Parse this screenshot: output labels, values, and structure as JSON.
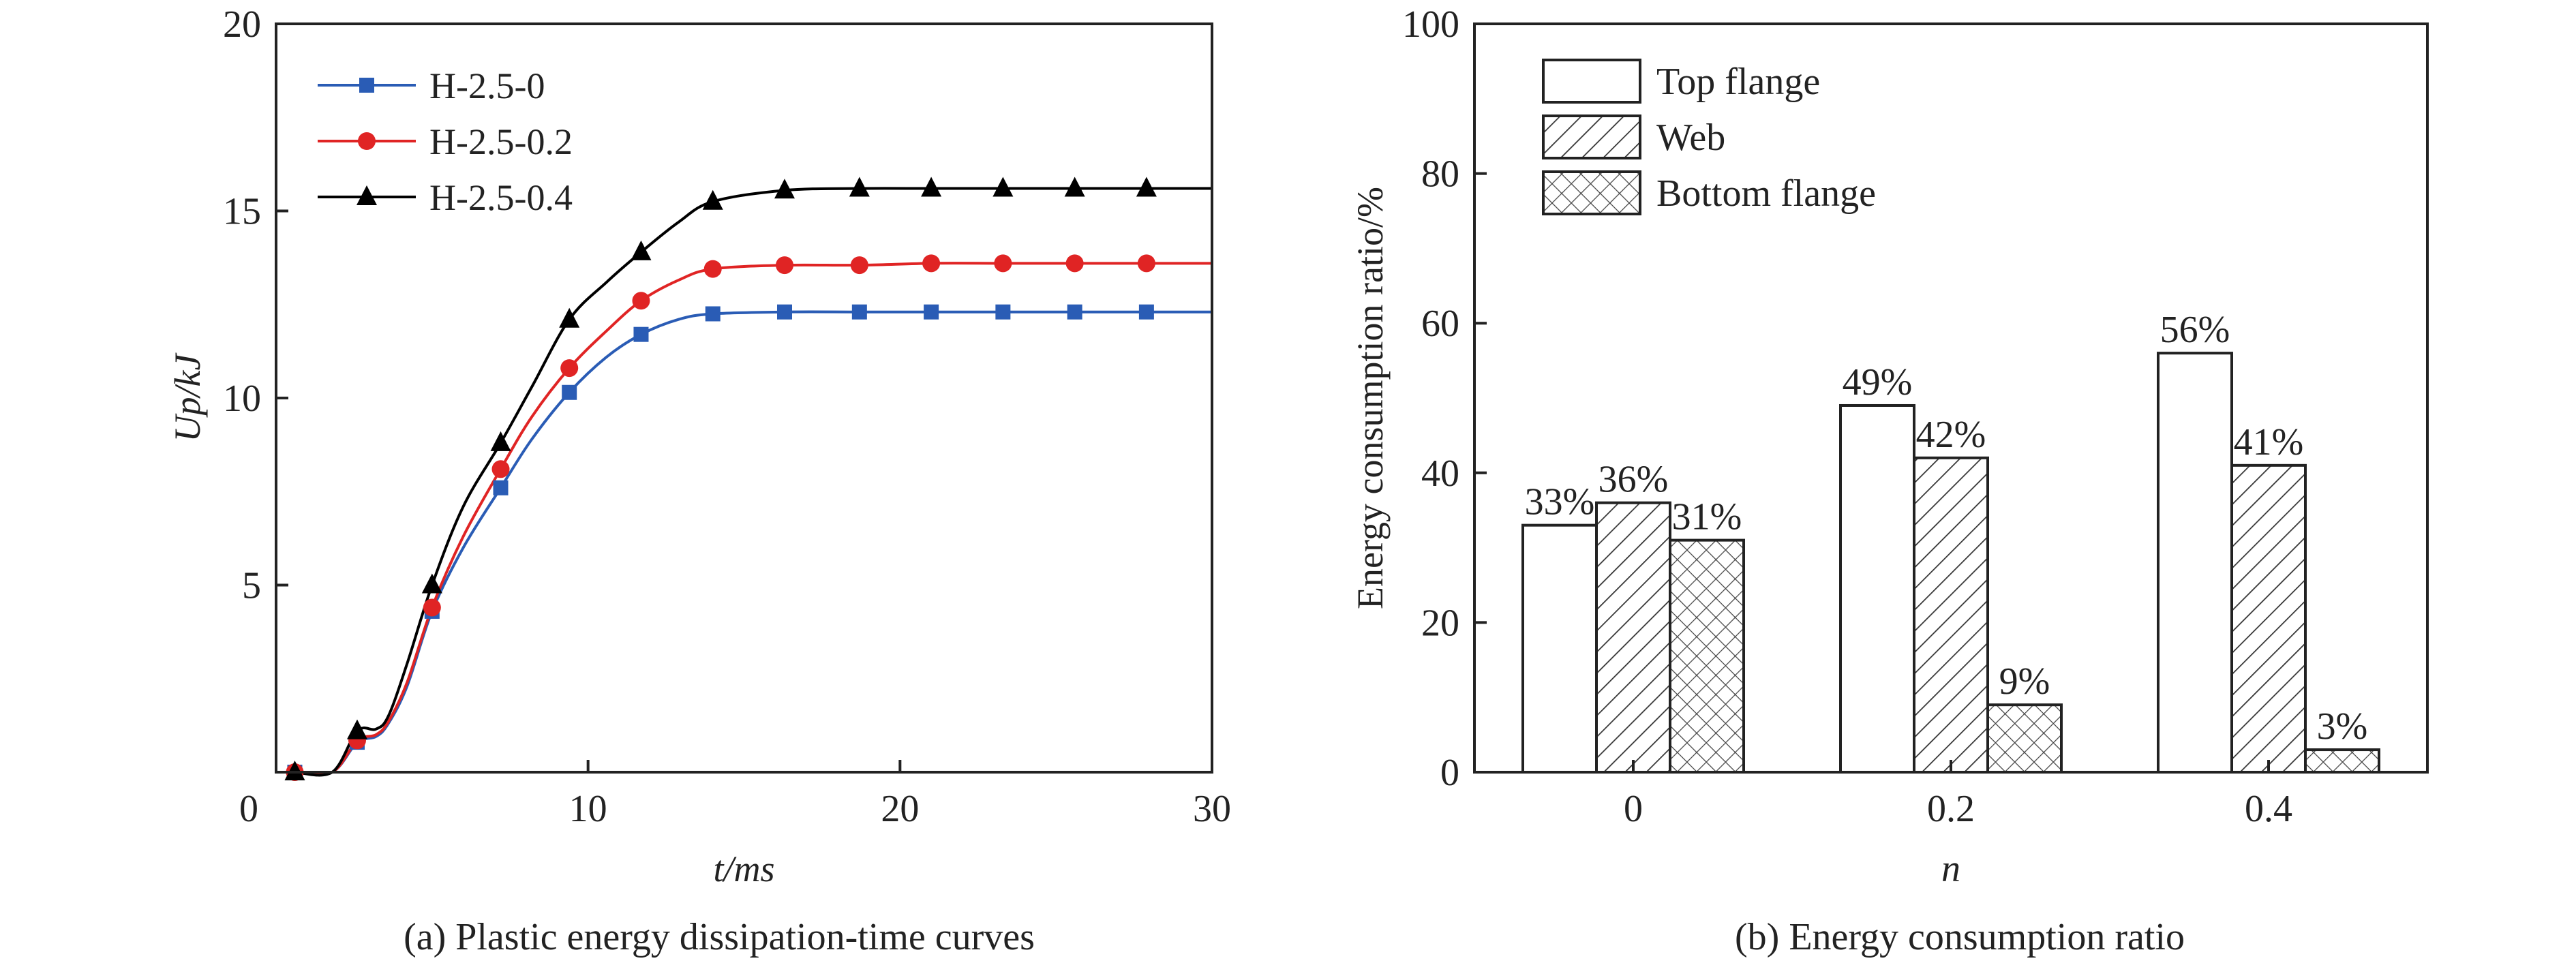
{
  "chart_data": [
    {
      "type": "line",
      "caption": "(a) Plastic energy dissipation-time curves",
      "xlabel": "t/ms",
      "ylabel": "Up/kJ",
      "xlim": [
        0,
        30
      ],
      "ylim": [
        0,
        20
      ],
      "xticks": [
        "0",
        "10",
        "20",
        "30"
      ],
      "yticks": [
        "5",
        "10",
        "15",
        "20"
      ],
      "grid": false,
      "legend": "top-left",
      "series": [
        {
          "name": "H-2.5-0",
          "color": "#2a5cb5",
          "marker": "square",
          "x": [
            0.6,
            1.8,
            2.6,
            3.2,
            3.6,
            4.2,
            5.0,
            6.0,
            7.2,
            8.2,
            9.4,
            10.6,
            11.7,
            12.9,
            14.0,
            16.3,
            18.7,
            21.0,
            23.3,
            25.6,
            27.9,
            30.0
          ],
          "y": [
            0.0,
            0.0,
            0.8,
            0.95,
            1.3,
            2.3,
            4.3,
            6.0,
            7.6,
            8.9,
            10.15,
            11.1,
            11.7,
            12.1,
            12.25,
            12.3,
            12.3,
            12.3,
            12.3,
            12.3,
            12.3,
            12.3
          ]
        },
        {
          "name": "H-2.5-0.2",
          "color": "#e02424",
          "marker": "circle",
          "x": [
            0.6,
            1.8,
            2.6,
            3.2,
            3.6,
            4.2,
            5.0,
            6.0,
            7.2,
            8.2,
            9.4,
            10.6,
            11.7,
            12.9,
            14.0,
            16.3,
            18.7,
            21.0,
            23.3,
            25.6,
            27.9,
            30.0
          ],
          "y": [
            0.0,
            0.0,
            0.85,
            1.0,
            1.35,
            2.4,
            4.4,
            6.3,
            8.1,
            9.5,
            10.8,
            11.8,
            12.6,
            13.15,
            13.45,
            13.55,
            13.55,
            13.6,
            13.6,
            13.6,
            13.6,
            13.6
          ]
        },
        {
          "name": "H-2.5-0.4",
          "color": "#000000",
          "marker": "triangle",
          "x": [
            0.6,
            1.8,
            2.6,
            3.2,
            3.6,
            4.2,
            5.0,
            6.0,
            7.2,
            8.2,
            9.4,
            10.6,
            11.7,
            12.9,
            14.0,
            16.3,
            18.7,
            21.0,
            23.3,
            25.6,
            27.9,
            30.0
          ],
          "y": [
            0.0,
            0.0,
            1.1,
            1.15,
            1.5,
            2.9,
            5.0,
            7.1,
            8.8,
            10.3,
            12.1,
            13.1,
            13.9,
            14.7,
            15.25,
            15.55,
            15.6,
            15.6,
            15.6,
            15.6,
            15.6,
            15.6
          ]
        }
      ]
    },
    {
      "type": "bar",
      "caption": "(b) Energy consumption ratio",
      "xlabel": "n",
      "ylabel": "Energy consumption ratio/%",
      "ylim": [
        0,
        100
      ],
      "yticks": [
        "0",
        "20",
        "40",
        "60",
        "80",
        "100"
      ],
      "categories": [
        "0",
        "0.2",
        "0.4"
      ],
      "grid": false,
      "legend": "top-left",
      "series": [
        {
          "name": "Top flange",
          "pattern": "none",
          "values": [
            33,
            49,
            56
          ],
          "labels": [
            "33%",
            "49%",
            "56%"
          ]
        },
        {
          "name": "Web",
          "pattern": "diagonal-hatch",
          "values": [
            36,
            42,
            41
          ],
          "labels": [
            "36%",
            "42%",
            "41%"
          ]
        },
        {
          "name": "Bottom flange",
          "pattern": "cross-hatch",
          "values": [
            31,
            9,
            3
          ],
          "labels": [
            "31%",
            "9%",
            "3%"
          ]
        }
      ]
    }
  ]
}
